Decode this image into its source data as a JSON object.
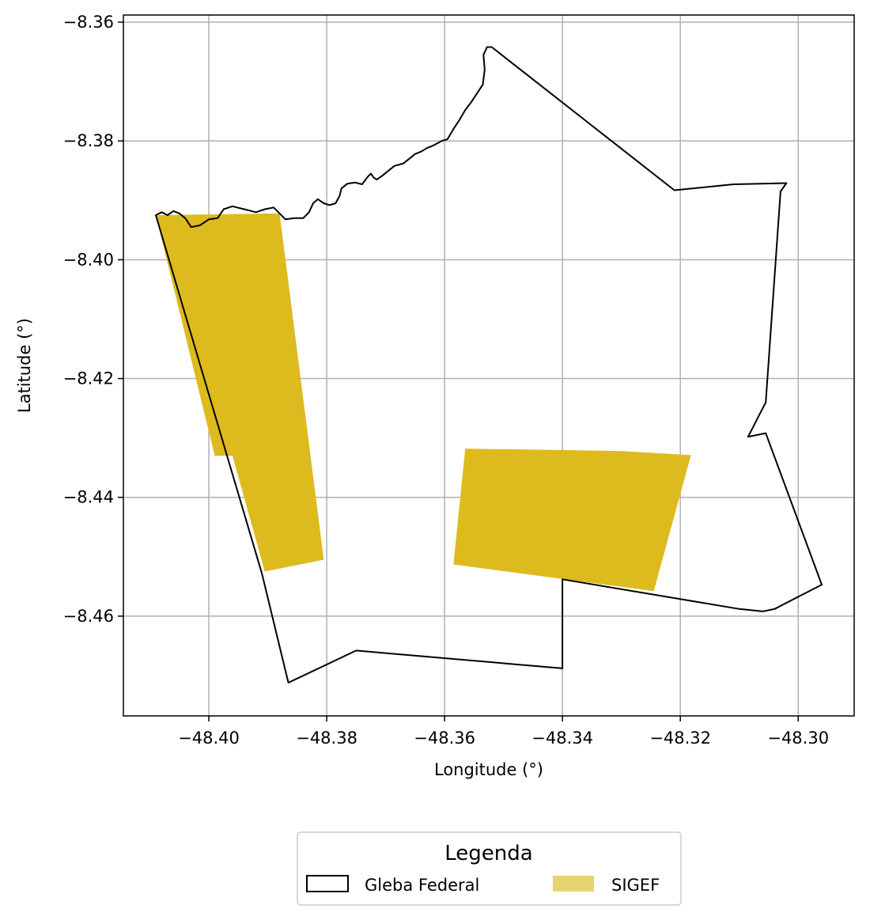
{
  "map": {
    "xlabel": "Longitude (°)",
    "ylabel": "Latitude (°)",
    "xlim": [
      -48.4145,
      -48.2905
    ],
    "ylim": [
      -8.4768,
      -8.3588
    ],
    "grid": true,
    "x_ticks": [
      -48.4,
      -48.38,
      -48.36,
      -48.34,
      -48.32,
      -48.3
    ],
    "x_tick_labels": [
      "−48.40",
      "−48.38",
      "−48.36",
      "−48.34",
      "−48.32",
      "−48.30"
    ],
    "y_ticks": [
      -8.36,
      -8.38,
      -8.4,
      -8.42,
      -8.44,
      -8.46
    ],
    "y_tick_labels": [
      "−8.36",
      "−8.38",
      "−8.40",
      "−8.42",
      "−8.44",
      "−8.46"
    ],
    "gleba_color": "#000000",
    "sigef_color": "#DDBB1F",
    "grid_color": "#b0b0b0",
    "gleba_boundary": [
      [
        -48.409,
        -8.3925
      ],
      [
        -48.408,
        -8.392
      ],
      [
        -48.407,
        -8.3925
      ],
      [
        -48.406,
        -8.3918
      ],
      [
        -48.405,
        -8.3922
      ],
      [
        -48.404,
        -8.393
      ],
      [
        -48.403,
        -8.3945
      ],
      [
        -48.4015,
        -8.3942
      ],
      [
        -48.4,
        -8.3932
      ],
      [
        -48.3985,
        -8.393
      ],
      [
        -48.3975,
        -8.3915
      ],
      [
        -48.396,
        -8.391
      ],
      [
        -48.394,
        -8.3915
      ],
      [
        -48.392,
        -8.392
      ],
      [
        -48.3905,
        -8.3915
      ],
      [
        -48.389,
        -8.3912
      ],
      [
        -48.388,
        -8.3922
      ],
      [
        -48.387,
        -8.3932
      ],
      [
        -48.3855,
        -8.393
      ],
      [
        -48.384,
        -8.393
      ],
      [
        -48.383,
        -8.392
      ],
      [
        -48.3823,
        -8.3905
      ],
      [
        -48.3815,
        -8.3898
      ],
      [
        -48.3805,
        -8.3905
      ],
      [
        -48.3795,
        -8.3908
      ],
      [
        -48.3785,
        -8.3905
      ],
      [
        -48.3778,
        -8.3892
      ],
      [
        -48.3775,
        -8.388
      ],
      [
        -48.3765,
        -8.3872
      ],
      [
        -48.3752,
        -8.387
      ],
      [
        -48.374,
        -8.3873
      ],
      [
        -48.373,
        -8.386
      ],
      [
        -48.3725,
        -8.3855
      ],
      [
        -48.372,
        -8.3862
      ],
      [
        -48.3715,
        -8.3865
      ],
      [
        -48.3705,
        -8.3858
      ],
      [
        -48.3695,
        -8.385
      ],
      [
        -48.3685,
        -8.3842
      ],
      [
        -48.367,
        -8.3838
      ],
      [
        -48.366,
        -8.383
      ],
      [
        -48.365,
        -8.3822
      ],
      [
        -48.364,
        -8.3818
      ],
      [
        -48.363,
        -8.3812
      ],
      [
        -48.362,
        -8.3808
      ],
      [
        -48.3605,
        -8.38
      ],
      [
        -48.3595,
        -8.3797
      ],
      [
        -48.3585,
        -8.378
      ],
      [
        -48.3575,
        -8.3765
      ],
      [
        -48.3565,
        -8.3748
      ],
      [
        -48.3555,
        -8.3735
      ],
      [
        -48.3545,
        -8.372
      ],
      [
        -48.3535,
        -8.3705
      ],
      [
        -48.3532,
        -8.368
      ],
      [
        -48.3534,
        -8.3655
      ],
      [
        -48.3528,
        -8.3642
      ],
      [
        -48.352,
        -8.3642
      ],
      [
        -48.321,
        -8.3883
      ],
      [
        -48.311,
        -8.3873
      ],
      [
        -48.302,
        -8.3871
      ],
      [
        -48.303,
        -8.3885
      ],
      [
        -48.3055,
        -8.424
      ],
      [
        -48.3085,
        -8.4298
      ],
      [
        -48.3055,
        -8.4292
      ],
      [
        -48.296,
        -8.4547
      ],
      [
        -48.304,
        -8.4588
      ],
      [
        -48.306,
        -8.4592
      ],
      [
        -48.31,
        -8.4588
      ],
      [
        -48.34,
        -8.4538
      ],
      [
        -48.34,
        -8.4688
      ],
      [
        -48.375,
        -8.4658
      ],
      [
        -48.3865,
        -8.4712
      ],
      [
        -48.391,
        -8.4528
      ],
      [
        -48.409,
        -8.3925
      ]
    ],
    "sigef_polygons": [
      [
        [
          -48.409,
          -8.3925
        ],
        [
          -48.388,
          -8.3922
        ],
        [
          -48.3805,
          -8.4505
        ],
        [
          -48.3905,
          -8.4525
        ],
        [
          -48.396,
          -8.433
        ],
        [
          -48.399,
          -8.433
        ],
        [
          -48.409,
          -8.3925
        ]
      ],
      [
        [
          -48.3565,
          -8.4318
        ],
        [
          -48.33,
          -8.4322
        ],
        [
          -48.3182,
          -8.4329
        ],
        [
          -48.3245,
          -8.4558
        ],
        [
          -48.3585,
          -8.4513
        ],
        [
          -48.3565,
          -8.4318
        ]
      ]
    ]
  },
  "legend": {
    "title": "Legenda",
    "items": [
      {
        "label": "Gleba Federal",
        "swatch": "outline",
        "color": "#000000"
      },
      {
        "label": "SIGEF",
        "swatch": "fill",
        "color": "#E8D372"
      }
    ]
  }
}
